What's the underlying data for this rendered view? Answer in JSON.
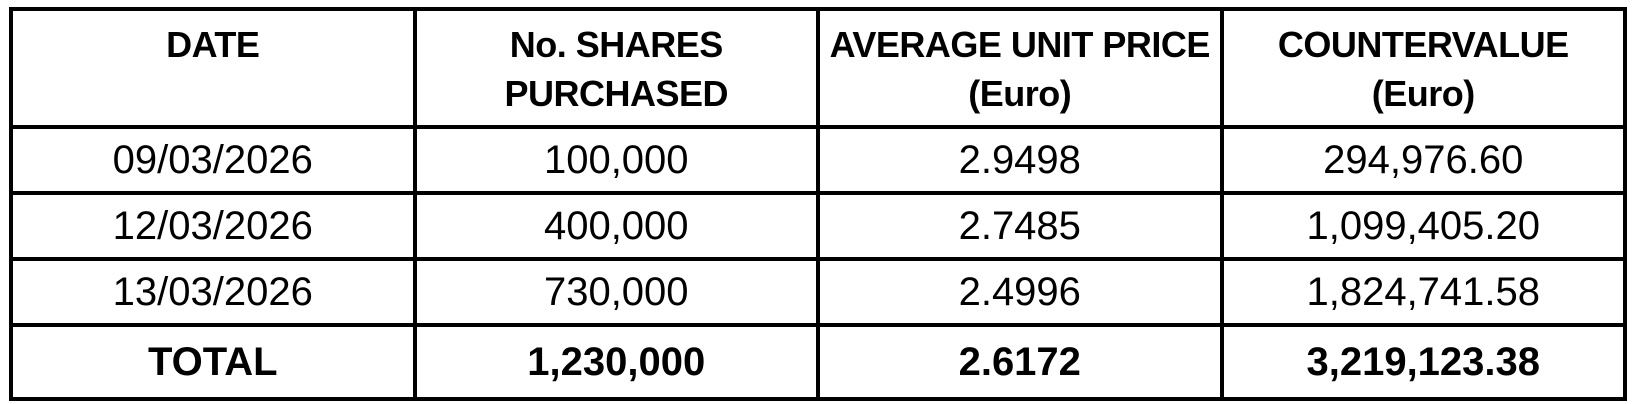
{
  "page": {
    "background_color": "#ffffff",
    "border_color": "#000000",
    "text_color": "#000000"
  },
  "table": {
    "columns": [
      "DATE",
      "No. SHARES\nPURCHASED",
      "AVERAGE UNIT PRICE\n(Euro)",
      "COUNTERVALUE\n(Euro)"
    ],
    "rows": [
      [
        "09/03/2026",
        "100,000",
        "2.9498",
        "294,976.60"
      ],
      [
        "12/03/2026",
        "400,000",
        "2.7485",
        "1,099,405.20"
      ],
      [
        "13/03/2026",
        "730,000",
        "2.4996",
        "1,824,741.58"
      ]
    ],
    "total": [
      "TOTAL",
      "1,230,000",
      "2.6172",
      "3,219,123.38"
    ]
  }
}
